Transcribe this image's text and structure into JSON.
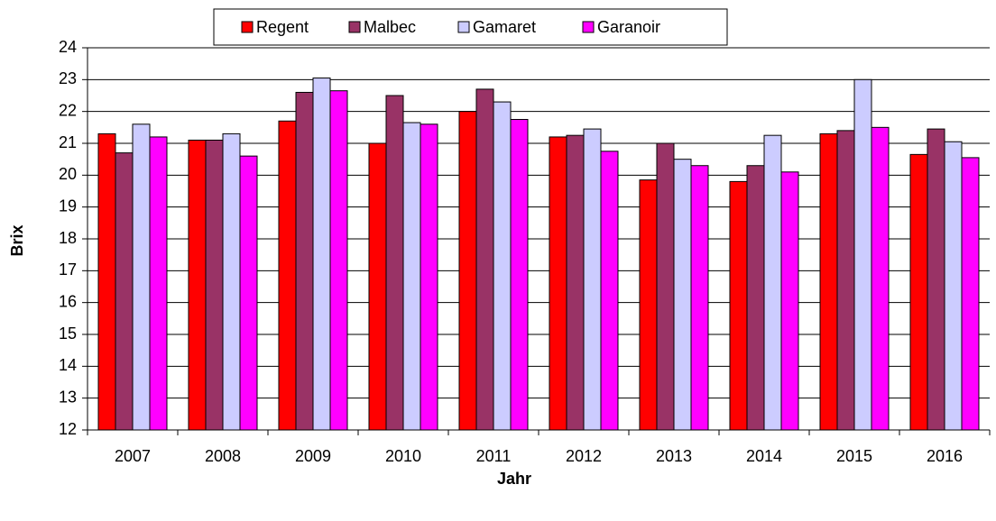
{
  "chart_data": {
    "type": "bar",
    "x_label": "Jahr",
    "y_label": "Brix",
    "categories": [
      "2007",
      "2008",
      "2009",
      "2010",
      "2011",
      "2012",
      "2013",
      "2014",
      "2015",
      "2016"
    ],
    "series": [
      {
        "name": "Regent",
        "color": "#ff0000",
        "values": [
          21.3,
          21.1,
          21.7,
          21.0,
          22.0,
          21.2,
          19.85,
          19.8,
          21.3,
          20.65
        ]
      },
      {
        "name": "Malbec",
        "color": "#993366",
        "values": [
          20.7,
          21.1,
          22.6,
          22.5,
          22.7,
          21.25,
          21.0,
          20.3,
          21.4,
          21.45
        ]
      },
      {
        "name": "Gamaret",
        "color": "#ccccff",
        "values": [
          21.6,
          21.3,
          23.05,
          21.65,
          22.3,
          21.45,
          20.5,
          21.25,
          23.0,
          21.05
        ]
      },
      {
        "name": "Garanoir",
        "color": "#ff00ff",
        "values": [
          21.2,
          20.6,
          22.65,
          21.6,
          21.75,
          20.75,
          20.3,
          20.1,
          21.5,
          20.55
        ]
      }
    ],
    "ylim": [
      12,
      24
    ],
    "yticks": [
      12,
      13,
      14,
      15,
      16,
      17,
      18,
      19,
      20,
      21,
      22,
      23,
      24
    ],
    "grid": true
  }
}
